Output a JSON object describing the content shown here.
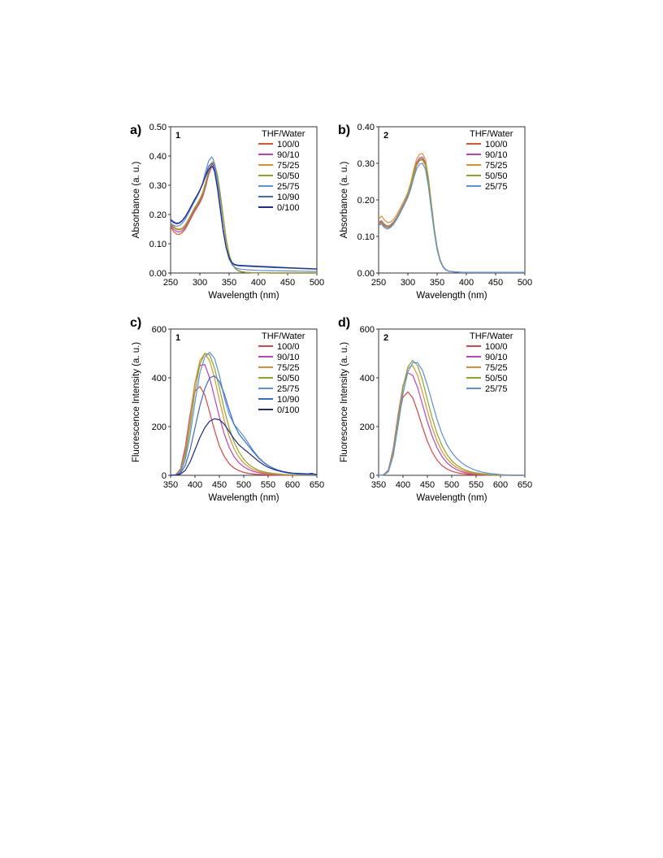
{
  "chart_data": [
    {
      "panel": "a)",
      "compound": "1",
      "type": "line",
      "xlabel": "Wavelength (nm)",
      "ylabel": "Absorbance (a. u.)",
      "xlim": [
        250,
        500
      ],
      "ylim": [
        0,
        0.5
      ],
      "xticks": [
        "250",
        "300",
        "350",
        "400",
        "450",
        "500"
      ],
      "yticks": [
        "0.00",
        "0.10",
        "0.20",
        "0.30",
        "0.40",
        "0.50"
      ],
      "legend_title": "THF/Water",
      "legend_position": "top-right",
      "grid": false,
      "x": [
        250,
        255,
        260,
        265,
        270,
        275,
        280,
        285,
        290,
        295,
        300,
        305,
        310,
        315,
        320,
        322,
        325,
        330,
        335,
        340,
        345,
        350,
        355,
        360,
        365,
        370,
        380,
        390,
        400,
        420,
        450,
        475,
        500
      ],
      "series": [
        {
          "name": "100/0",
          "color": "#e8502a",
          "values": [
            0.158,
            0.142,
            0.133,
            0.132,
            0.138,
            0.15,
            0.168,
            0.188,
            0.207,
            0.223,
            0.24,
            0.262,
            0.296,
            0.336,
            0.362,
            0.365,
            0.36,
            0.325,
            0.262,
            0.185,
            0.112,
            0.062,
            0.032,
            0.016,
            0.008,
            0.004,
            0.002,
            0.001,
            0.001,
            0.0,
            0.0,
            0.0,
            0.0
          ]
        },
        {
          "name": "90/10",
          "color": "#c040c0",
          "values": [
            0.163,
            0.15,
            0.142,
            0.14,
            0.145,
            0.156,
            0.174,
            0.194,
            0.213,
            0.229,
            0.246,
            0.268,
            0.303,
            0.343,
            0.368,
            0.371,
            0.366,
            0.33,
            0.266,
            0.188,
            0.114,
            0.063,
            0.033,
            0.017,
            0.009,
            0.005,
            0.002,
            0.001,
            0.001,
            0.0,
            0.0,
            0.0,
            0.0
          ]
        },
        {
          "name": "75/25",
          "color": "#e0902a",
          "values": [
            0.172,
            0.16,
            0.152,
            0.15,
            0.154,
            0.165,
            0.182,
            0.201,
            0.22,
            0.236,
            0.254,
            0.276,
            0.312,
            0.352,
            0.376,
            0.38,
            0.374,
            0.337,
            0.271,
            0.191,
            0.116,
            0.064,
            0.033,
            0.017,
            0.009,
            0.005,
            0.002,
            0.001,
            0.001,
            0.0,
            0.0,
            0.0,
            0.0
          ]
        },
        {
          "name": "50/50",
          "color": "#8aa820",
          "values": [
            0.168,
            0.156,
            0.149,
            0.147,
            0.151,
            0.162,
            0.179,
            0.198,
            0.217,
            0.233,
            0.251,
            0.273,
            0.309,
            0.349,
            0.373,
            0.377,
            0.37,
            0.333,
            0.268,
            0.189,
            0.115,
            0.063,
            0.033,
            0.017,
            0.009,
            0.005,
            0.002,
            0.001,
            0.001,
            0.0,
            0.0,
            0.0,
            0.0
          ]
        },
        {
          "name": "25/75",
          "color": "#5a8ee8",
          "values": [
            0.17,
            0.163,
            0.16,
            0.162,
            0.17,
            0.184,
            0.202,
            0.222,
            0.241,
            0.259,
            0.28,
            0.31,
            0.348,
            0.383,
            0.397,
            0.393,
            0.375,
            0.312,
            0.232,
            0.15,
            0.087,
            0.048,
            0.028,
            0.019,
            0.015,
            0.013,
            0.011,
            0.01,
            0.009,
            0.008,
            0.007,
            0.006,
            0.005
          ]
        },
        {
          "name": "10/90",
          "color": "#3a6ad8",
          "values": [
            0.18,
            0.172,
            0.168,
            0.17,
            0.178,
            0.191,
            0.208,
            0.227,
            0.246,
            0.264,
            0.284,
            0.308,
            0.338,
            0.365,
            0.375,
            0.372,
            0.355,
            0.295,
            0.218,
            0.142,
            0.085,
            0.05,
            0.033,
            0.027,
            0.025,
            0.024,
            0.023,
            0.022,
            0.021,
            0.019,
            0.017,
            0.015,
            0.013
          ]
        },
        {
          "name": "0/100",
          "color": "#1a2a9a",
          "values": [
            0.183,
            0.175,
            0.17,
            0.172,
            0.18,
            0.193,
            0.21,
            0.229,
            0.248,
            0.265,
            0.283,
            0.305,
            0.332,
            0.355,
            0.364,
            0.362,
            0.348,
            0.29,
            0.215,
            0.142,
            0.086,
            0.052,
            0.035,
            0.029,
            0.027,
            0.026,
            0.025,
            0.024,
            0.023,
            0.021,
            0.018,
            0.016,
            0.014
          ]
        }
      ]
    },
    {
      "panel": "b)",
      "compound": "2",
      "type": "line",
      "xlabel": "Wavelength (nm)",
      "ylabel": "Absorbance (a. u.)",
      "xlim": [
        250,
        500
      ],
      "ylim": [
        0,
        0.4
      ],
      "xticks": [
        "250",
        "300",
        "350",
        "400",
        "450",
        "500"
      ],
      "yticks": [
        "0.00",
        "0.10",
        "0.20",
        "0.30",
        "0.40"
      ],
      "legend_title": "THF/Water",
      "legend_position": "top-right",
      "grid": false,
      "x": [
        250,
        255,
        260,
        265,
        270,
        275,
        280,
        285,
        290,
        295,
        300,
        305,
        310,
        315,
        320,
        325,
        330,
        335,
        340,
        345,
        350,
        355,
        360,
        365,
        370,
        380,
        390,
        400,
        450,
        500
      ],
      "series": [
        {
          "name": "100/0",
          "color": "#e8502a",
          "values": [
            0.133,
            0.138,
            0.128,
            0.124,
            0.127,
            0.135,
            0.146,
            0.16,
            0.176,
            0.192,
            0.21,
            0.235,
            0.268,
            0.295,
            0.308,
            0.31,
            0.295,
            0.25,
            0.185,
            0.12,
            0.068,
            0.035,
            0.017,
            0.009,
            0.005,
            0.003,
            0.002,
            0.002,
            0.002,
            0.002
          ]
        },
        {
          "name": "90/10",
          "color": "#c040c0",
          "values": [
            0.138,
            0.143,
            0.133,
            0.128,
            0.131,
            0.139,
            0.15,
            0.164,
            0.18,
            0.196,
            0.214,
            0.24,
            0.274,
            0.302,
            0.315,
            0.317,
            0.302,
            0.256,
            0.189,
            0.122,
            0.069,
            0.036,
            0.018,
            0.009,
            0.005,
            0.003,
            0.002,
            0.002,
            0.002,
            0.002
          ]
        },
        {
          "name": "75/25",
          "color": "#e0902a",
          "values": [
            0.147,
            0.156,
            0.145,
            0.138,
            0.139,
            0.146,
            0.157,
            0.171,
            0.187,
            0.203,
            0.221,
            0.248,
            0.283,
            0.312,
            0.325,
            0.327,
            0.311,
            0.263,
            0.194,
            0.125,
            0.071,
            0.037,
            0.018,
            0.009,
            0.005,
            0.003,
            0.002,
            0.002,
            0.002,
            0.002
          ]
        },
        {
          "name": "50/50",
          "color": "#8aa820",
          "values": [
            0.136,
            0.141,
            0.131,
            0.126,
            0.129,
            0.137,
            0.148,
            0.162,
            0.178,
            0.194,
            0.212,
            0.237,
            0.271,
            0.298,
            0.311,
            0.313,
            0.298,
            0.252,
            0.186,
            0.12,
            0.068,
            0.035,
            0.017,
            0.009,
            0.005,
            0.003,
            0.002,
            0.002,
            0.002,
            0.002
          ]
        },
        {
          "name": "25/75",
          "color": "#5a8ee8",
          "values": [
            0.13,
            0.134,
            0.124,
            0.12,
            0.124,
            0.132,
            0.144,
            0.158,
            0.174,
            0.19,
            0.207,
            0.23,
            0.26,
            0.285,
            0.298,
            0.3,
            0.284,
            0.238,
            0.174,
            0.112,
            0.063,
            0.033,
            0.016,
            0.008,
            0.005,
            0.003,
            0.002,
            0.002,
            0.002,
            0.002
          ]
        }
      ]
    },
    {
      "panel": "c)",
      "compound": "1",
      "type": "line",
      "xlabel": "Wavelength (nm)",
      "ylabel": "Fluorescence Intensity (a. u.)",
      "xlim": [
        350,
        650
      ],
      "ylim": [
        0,
        600
      ],
      "xticks": [
        "350",
        "400",
        "450",
        "500",
        "550",
        "600",
        "650"
      ],
      "yticks": [
        "0",
        "200",
        "400",
        "600"
      ],
      "legend_title": "THF/Water",
      "legend_position": "top-right",
      "grid": false,
      "x": [
        350,
        360,
        370,
        380,
        390,
        400,
        410,
        420,
        430,
        440,
        450,
        460,
        470,
        480,
        490,
        500,
        510,
        520,
        530,
        540,
        550,
        560,
        570,
        580,
        590,
        600,
        610,
        620,
        630,
        640,
        650
      ],
      "series": [
        {
          "name": "100/0",
          "color": "#e84040",
          "values": [
            0,
            2,
            25,
            115,
            250,
            345,
            365,
            330,
            260,
            185,
            120,
            78,
            48,
            30,
            19,
            12,
            8,
            5,
            4,
            3,
            2,
            1,
            1,
            1,
            0,
            0,
            0,
            0,
            0,
            0,
            0
          ]
        },
        {
          "name": "90/10",
          "color": "#c040c0",
          "values": [
            0,
            2,
            22,
            105,
            245,
            380,
            450,
            455,
            400,
            320,
            240,
            170,
            115,
            77,
            52,
            35,
            24,
            16,
            11,
            8,
            6,
            4,
            3,
            2,
            1,
            1,
            1,
            0,
            0,
            0,
            0
          ]
        },
        {
          "name": "75/25",
          "color": "#e0902a",
          "values": [
            0,
            2,
            20,
            95,
            230,
            380,
            470,
            500,
            470,
            400,
            310,
            225,
            160,
            110,
            75,
            50,
            34,
            23,
            16,
            11,
            8,
            6,
            4,
            3,
            2,
            1,
            1,
            1,
            0,
            0,
            0
          ]
        },
        {
          "name": "50/50",
          "color": "#8aa820",
          "values": [
            0,
            1,
            16,
            80,
            200,
            345,
            455,
            500,
            495,
            440,
            360,
            270,
            195,
            138,
            96,
            66,
            45,
            31,
            21,
            15,
            11,
            8,
            6,
            4,
            3,
            2,
            1,
            1,
            1,
            0,
            0
          ]
        },
        {
          "name": "25/75",
          "color": "#5a8ee8",
          "values": [
            0,
            1,
            12,
            62,
            165,
            300,
            420,
            485,
            505,
            480,
            410,
            320,
            250,
            210,
            185,
            160,
            130,
            100,
            75,
            55,
            40,
            28,
            20,
            14,
            10,
            7,
            5,
            4,
            3,
            3,
            2
          ]
        },
        {
          "name": "10/90",
          "color": "#3a6ad8",
          "values": [
            0,
            1,
            8,
            40,
            105,
            195,
            285,
            355,
            400,
            408,
            385,
            335,
            270,
            210,
            170,
            145,
            120,
            95,
            72,
            54,
            40,
            30,
            22,
            16,
            12,
            9,
            7,
            6,
            5,
            5,
            4
          ]
        },
        {
          "name": "0/100",
          "color": "#1a2a9a",
          "values": [
            0,
            1,
            5,
            20,
            55,
            105,
            155,
            195,
            222,
            232,
            228,
            210,
            180,
            150,
            125,
            108,
            92,
            75,
            58,
            44,
            33,
            25,
            19,
            14,
            11,
            9,
            8,
            7,
            6,
            8,
            2
          ]
        }
      ]
    },
    {
      "panel": "d)",
      "compound": "2",
      "type": "line",
      "xlabel": "Wavelength (nm)",
      "ylabel": "Fluorescence Intensity (a. u.)",
      "xlim": [
        350,
        650
      ],
      "ylim": [
        0,
        600
      ],
      "xticks": [
        "350",
        "400",
        "450",
        "500",
        "550",
        "600",
        "650"
      ],
      "yticks": [
        "0",
        "200",
        "400",
        "600"
      ],
      "legend_title": "THF/Water",
      "legend_position": "top-right",
      "grid": false,
      "x": [
        350,
        360,
        370,
        380,
        390,
        400,
        410,
        420,
        430,
        440,
        450,
        460,
        470,
        480,
        490,
        500,
        510,
        520,
        530,
        540,
        550,
        560,
        570,
        580,
        590,
        600,
        620,
        650
      ],
      "series": [
        {
          "name": "100/0",
          "color": "#e84040",
          "values": [
            0,
            2,
            22,
            105,
            230,
            320,
            342,
            318,
            262,
            198,
            140,
            95,
            62,
            40,
            26,
            17,
            11,
            7,
            5,
            3,
            2,
            1,
            1,
            1,
            0,
            0,
            0,
            0
          ]
        },
        {
          "name": "90/10",
          "color": "#c040c0",
          "values": [
            0,
            2,
            22,
            110,
            250,
            370,
            420,
            410,
            360,
            290,
            220,
            160,
            112,
            77,
            52,
            35,
            23,
            15,
            10,
            7,
            5,
            3,
            2,
            1,
            1,
            1,
            0,
            0
          ]
        },
        {
          "name": "75/25",
          "color": "#e0902a",
          "values": [
            0,
            2,
            20,
            100,
            240,
            365,
            440,
            450,
            410,
            340,
            265,
            195,
            140,
            98,
            68,
            47,
            32,
            22,
            15,
            10,
            7,
            5,
            3,
            2,
            1,
            1,
            0,
            0
          ]
        },
        {
          "name": "50/50",
          "color": "#8aa820",
          "values": [
            0,
            2,
            18,
            95,
            230,
            360,
            445,
            472,
            450,
            390,
            310,
            235,
            170,
            122,
            86,
            60,
            42,
            29,
            20,
            14,
            10,
            7,
            5,
            3,
            2,
            1,
            1,
            0
          ]
        },
        {
          "name": "25/75",
          "color": "#5a8ee8",
          "values": [
            0,
            1,
            14,
            80,
            205,
            335,
            425,
            462,
            462,
            430,
            370,
            298,
            228,
            170,
            126,
            94,
            70,
            52,
            38,
            28,
            20,
            14,
            10,
            7,
            5,
            3,
            1,
            0
          ]
        }
      ]
    }
  ]
}
